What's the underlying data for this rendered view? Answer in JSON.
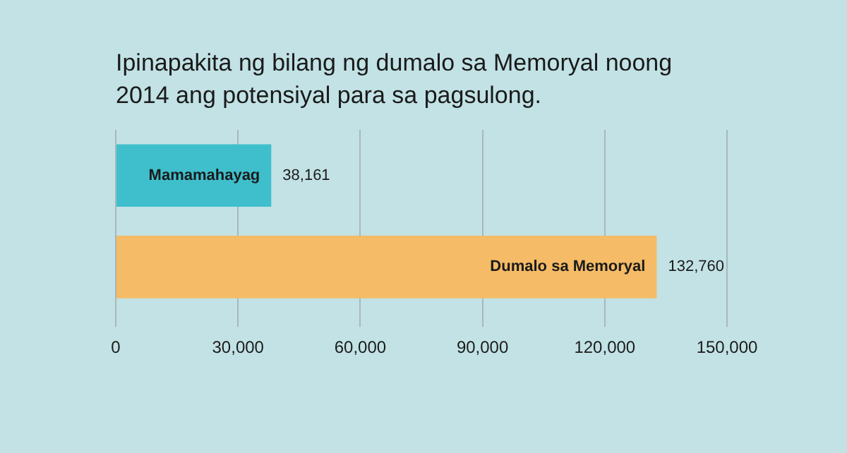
{
  "chart_data": {
    "type": "bar",
    "orientation": "horizontal",
    "title": "Ipinapakita ng bilang ng dumalo sa Memoryal noong 2014 ang potensiyal para sa pagsulong.",
    "categories": [
      "Mamamahayag",
      "Dumalo sa Memoryal"
    ],
    "values": [
      38161,
      132760
    ],
    "value_labels": [
      "38,161",
      "132,760"
    ],
    "colors": [
      "#3fbfcc",
      "#f5bb66"
    ],
    "xlim": [
      0,
      150000
    ],
    "xticks": [
      0,
      {
        "value": 30000,
        "label": "30,000"
      },
      {
        "value": 60000,
        "label": "60,000"
      },
      {
        "value": 90000,
        "label": "90,000"
      },
      {
        "value": 120000,
        "label": "120,000"
      },
      {
        "value": 150000,
        "label": "150,000"
      }
    ],
    "grid": "x"
  }
}
